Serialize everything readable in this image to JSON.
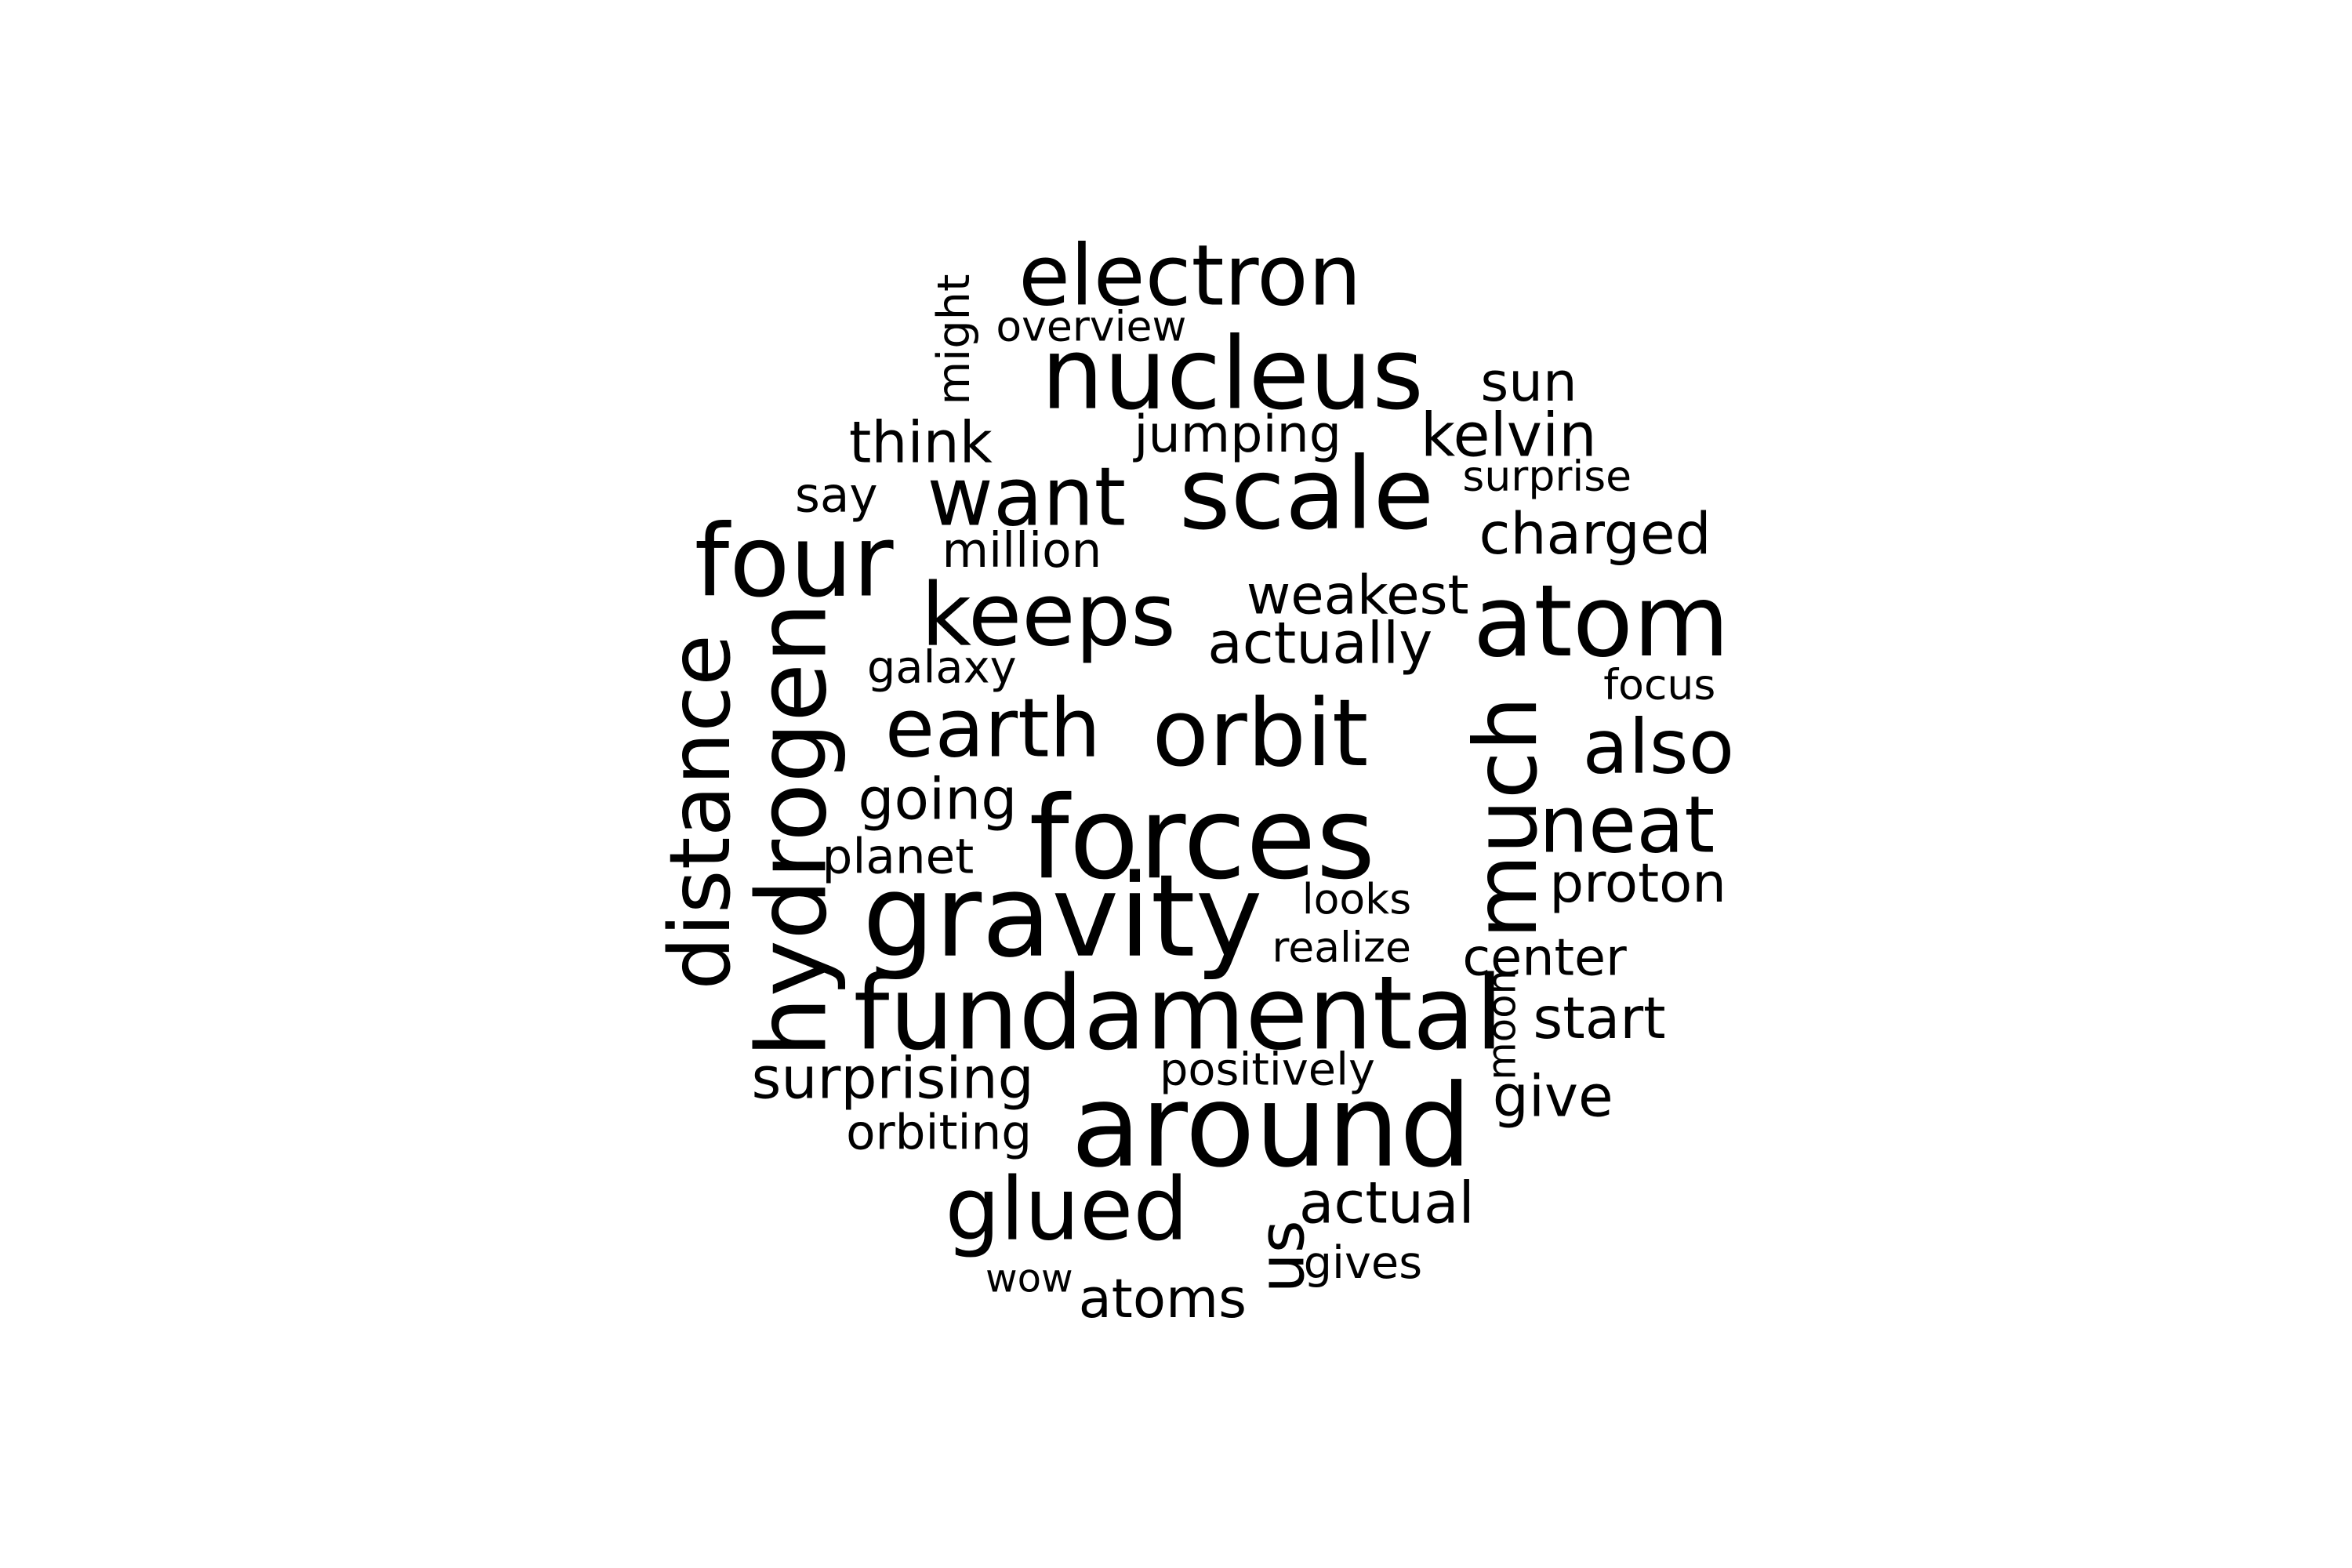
{
  "words": [
    {
      "text": "electron",
      "weight": 55,
      "rotated": false
    },
    {
      "text": "overview",
      "weight": 32,
      "rotated": false
    },
    {
      "text": "might",
      "weight": 32,
      "rotated": true
    },
    {
      "text": "nucleus",
      "weight": 80,
      "rotated": false
    },
    {
      "text": "sun",
      "weight": 44,
      "rotated": false
    },
    {
      "text": "think",
      "weight": 44,
      "rotated": false
    },
    {
      "text": "jumping",
      "weight": 40,
      "rotated": false
    },
    {
      "text": "kelvin",
      "weight": 44,
      "rotated": false
    },
    {
      "text": "say",
      "weight": 36,
      "rotated": false
    },
    {
      "text": "want",
      "weight": 70,
      "rotated": false
    },
    {
      "text": "scale",
      "weight": 80,
      "rotated": false
    },
    {
      "text": "surprise",
      "weight": 32,
      "rotated": false
    },
    {
      "text": "charged",
      "weight": 44,
      "rotated": false
    },
    {
      "text": "four",
      "weight": 80,
      "rotated": false
    },
    {
      "text": "million",
      "weight": 40,
      "rotated": false
    },
    {
      "text": "keeps",
      "weight": 70,
      "rotated": false
    },
    {
      "text": "weakest",
      "weight": 44,
      "rotated": false
    },
    {
      "text": "atom",
      "weight": 80,
      "rotated": false
    },
    {
      "text": "actually",
      "weight": 44,
      "rotated": false
    },
    {
      "text": "galaxy",
      "weight": 36,
      "rotated": false
    },
    {
      "text": "focus",
      "weight": 32,
      "rotated": false
    },
    {
      "text": "distance",
      "weight": 70,
      "rotated": true
    },
    {
      "text": "hydrogen",
      "weight": 80,
      "rotated": true
    },
    {
      "text": "earth",
      "weight": 70,
      "rotated": false
    },
    {
      "text": "orbit",
      "weight": 80,
      "rotated": false
    },
    {
      "text": "much",
      "weight": 80,
      "rotated": true
    },
    {
      "text": "also",
      "weight": 70,
      "rotated": false
    },
    {
      "text": "going",
      "weight": 44,
      "rotated": false
    },
    {
      "text": "forces",
      "weight": 95,
      "rotated": false
    },
    {
      "text": "neat",
      "weight": 70,
      "rotated": false
    },
    {
      "text": "planet",
      "weight": 40,
      "rotated": false
    },
    {
      "text": "proton",
      "weight": 40,
      "rotated": false
    },
    {
      "text": "looks",
      "weight": 36,
      "rotated": false
    },
    {
      "text": "gravity",
      "weight": 95,
      "rotated": false
    },
    {
      "text": "realize",
      "weight": 36,
      "rotated": false
    },
    {
      "text": "center",
      "weight": 40,
      "rotated": false
    },
    {
      "text": "fundamental",
      "weight": 90,
      "rotated": false
    },
    {
      "text": "moon",
      "weight": 30,
      "rotated": true
    },
    {
      "text": "start",
      "weight": 44,
      "rotated": false
    },
    {
      "text": "surprising",
      "weight": 44,
      "rotated": false
    },
    {
      "text": "positively",
      "weight": 36,
      "rotated": false
    },
    {
      "text": "give",
      "weight": 44,
      "rotated": false
    },
    {
      "text": "orbiting",
      "weight": 36,
      "rotated": false
    },
    {
      "text": "around",
      "weight": 95,
      "rotated": false
    },
    {
      "text": "glued",
      "weight": 80,
      "rotated": false
    },
    {
      "text": "us",
      "weight": 60,
      "rotated": true
    },
    {
      "text": "actual",
      "weight": 44,
      "rotated": false
    },
    {
      "text": "gives",
      "weight": 36,
      "rotated": false
    },
    {
      "text": "wow",
      "weight": 30,
      "rotated": false
    },
    {
      "text": "atoms",
      "weight": 44,
      "rotated": false
    }
  ]
}
